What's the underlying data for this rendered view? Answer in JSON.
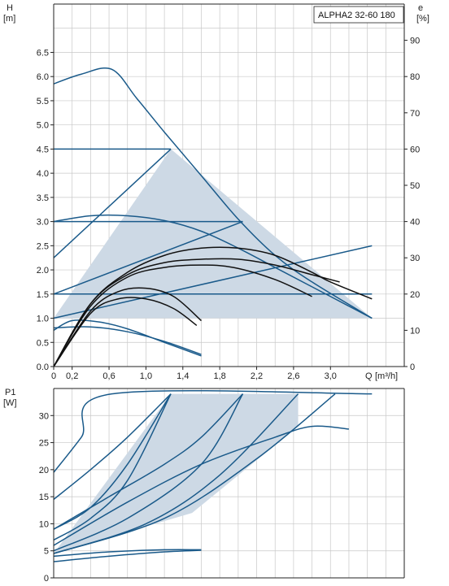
{
  "chart_data": [
    {
      "type": "line",
      "title": "ALPHA2 32-60 180",
      "ylabel": "H",
      "yunit": "[m]",
      "xlabel": "Q",
      "xunit": "[m³/h]",
      "y2label": "e",
      "y2unit": "[%]",
      "xlim": [
        0,
        3.8
      ],
      "ylim": [
        0,
        7.5
      ],
      "y2lim": [
        0,
        100
      ],
      "grid": true,
      "xticks": [
        0,
        0.2,
        0.6,
        1.0,
        1.4,
        1.8,
        2.2,
        2.6,
        3.0
      ],
      "xtick_labels": [
        "0",
        "0,2",
        "0,6",
        "1,0",
        "1,4",
        "1,8",
        "2,2",
        "2,6",
        "3,0"
      ],
      "yticks": [
        0,
        0.5,
        1.0,
        1.5,
        2.0,
        2.5,
        3.0,
        3.5,
        4.0,
        4.5,
        5.0,
        5.5,
        6.0,
        6.5
      ],
      "ytick_labels": [
        "0.0",
        "0.5",
        "1.0",
        "1.5",
        "2.0",
        "2.5",
        "3.0",
        "3.5",
        "4.0",
        "4.5",
        "5.0",
        "5.5",
        "6.0",
        "6.5"
      ],
      "y2ticks": [
        0,
        10,
        20,
        30,
        40,
        50,
        60,
        70,
        80,
        90
      ],
      "y2tick_labels": [
        "0",
        "10",
        "20",
        "30",
        "40",
        "50",
        "60",
        "70",
        "80",
        "90"
      ],
      "shaded_region": {
        "x": [
          0,
          1.27,
          3.45,
          0
        ],
        "y": [
          1.0,
          4.5,
          1.0,
          1.0
        ]
      },
      "series": [
        {
          "kind": "pump",
          "color": "#1a5a8a",
          "x": [
            0,
            0.3,
            0.63,
            0.9,
            1.2,
            1.6,
            2.0,
            2.4,
            2.8,
            3.45
          ],
          "y": [
            5.85,
            6.05,
            6.15,
            5.55,
            4.85,
            3.95,
            3.05,
            2.3,
            1.75,
            1.0
          ]
        },
        {
          "kind": "pump",
          "color": "#1a5a8a",
          "x": [
            0,
            0.4,
            0.8,
            1.2,
            1.6,
            2.0,
            2.4,
            2.8,
            3.2,
            3.45
          ],
          "y": [
            3.0,
            3.12,
            3.12,
            3.02,
            2.8,
            2.45,
            2.05,
            1.65,
            1.25,
            1.0
          ]
        },
        {
          "kind": "pump",
          "color": "#1a5a8a",
          "x": [
            0,
            0.4,
            0.8,
            1.2,
            1.6
          ],
          "y": [
            0.8,
            0.82,
            0.72,
            0.52,
            0.25
          ]
        },
        {
          "kind": "pump",
          "color": "#1a5a8a",
          "x": [
            0,
            0.2,
            0.5,
            0.8,
            1.2,
            1.6
          ],
          "y": [
            0.75,
            0.95,
            0.92,
            0.78,
            0.5,
            0.22
          ]
        },
        {
          "kind": "const_pressure",
          "color": "#1a5a8a",
          "x": [
            0,
            1.27
          ],
          "y": [
            4.5,
            4.5
          ]
        },
        {
          "kind": "const_pressure",
          "color": "#1a5a8a",
          "x": [
            0,
            2.05
          ],
          "y": [
            3.0,
            3.0
          ]
        },
        {
          "kind": "const_pressure",
          "color": "#1a5a8a",
          "x": [
            0,
            3.45
          ],
          "y": [
            1.5,
            1.5
          ]
        },
        {
          "kind": "prop_pressure",
          "color": "#1a5a8a",
          "x": [
            0,
            1.27
          ],
          "y": [
            2.25,
            4.5
          ]
        },
        {
          "kind": "prop_pressure",
          "color": "#1a5a8a",
          "x": [
            0,
            2.05
          ],
          "y": [
            1.5,
            3.0
          ]
        },
        {
          "kind": "prop_pressure",
          "color": "#1a5a8a",
          "x": [
            0,
            3.45
          ],
          "y": [
            1.0,
            2.5
          ]
        },
        {
          "kind": "efficiency",
          "color": "#111111",
          "x": [
            0,
            0.4,
            0.8,
            1.2,
            1.6,
            2.0,
            2.4,
            2.8,
            3.0,
            3.45
          ],
          "y": [
            0,
            1.3,
            1.95,
            2.3,
            2.45,
            2.45,
            2.3,
            1.95,
            1.75,
            1.4
          ]
        },
        {
          "kind": "efficiency",
          "color": "#111111",
          "x": [
            0,
            0.4,
            0.8,
            1.2,
            1.6,
            2.0,
            2.4,
            2.8,
            3.1
          ],
          "y": [
            0,
            1.3,
            1.9,
            2.15,
            2.22,
            2.22,
            2.1,
            1.9,
            1.75
          ]
        },
        {
          "kind": "efficiency",
          "color": "#111111",
          "x": [
            0,
            0.4,
            0.8,
            1.2,
            1.6,
            1.95,
            2.4,
            2.8
          ],
          "y": [
            0,
            1.25,
            1.85,
            2.05,
            2.1,
            2.05,
            1.8,
            1.45
          ]
        },
        {
          "kind": "efficiency",
          "color": "#111111",
          "x": [
            0,
            0.4,
            0.7,
            1.0,
            1.3,
            1.6
          ],
          "y": [
            0,
            1.15,
            1.55,
            1.62,
            1.45,
            0.95
          ]
        },
        {
          "kind": "efficiency",
          "color": "#111111",
          "x": [
            0,
            0.4,
            0.7,
            1.0,
            1.3,
            1.55
          ],
          "y": [
            0,
            1.1,
            1.4,
            1.4,
            1.2,
            0.85
          ]
        }
      ]
    },
    {
      "type": "line",
      "ylabel": "P1",
      "yunit": "[W]",
      "xlim": [
        0,
        3.8
      ],
      "ylim": [
        0,
        35
      ],
      "grid": true,
      "yticks": [
        0,
        5,
        10,
        15,
        20,
        25,
        30
      ],
      "ytick_labels": [
        "0",
        "5",
        "10",
        "15",
        "20",
        "25",
        "30"
      ],
      "shaded_region": {
        "x": [
          0,
          1.27,
          2.05,
          2.65,
          2.65,
          1.5,
          0
        ],
        "y": [
          4.5,
          34,
          34,
          34,
          28,
          12,
          4.5
        ]
      },
      "series": [
        {
          "kind": "power",
          "color": "#1a5a8a",
          "x": [
            0,
            0.3,
            0.63,
            3.45
          ],
          "y": [
            19.5,
            26,
            34,
            34
          ]
        },
        {
          "kind": "power",
          "color": "#1a5a8a",
          "x": [
            0,
            0.4,
            0.8,
            1.27
          ],
          "y": [
            14.5,
            20,
            26,
            34
          ]
        },
        {
          "kind": "power",
          "color": "#1a5a8a",
          "x": [
            0,
            0.4,
            0.8,
            1.27
          ],
          "y": [
            9,
            13,
            21,
            34
          ]
        },
        {
          "kind": "power",
          "color": "#1a5a8a",
          "x": [
            0,
            0.4,
            0.8,
            1.27
          ],
          "y": [
            7,
            11,
            18,
            34
          ]
        },
        {
          "kind": "power",
          "color": "#1a5a8a",
          "x": [
            0,
            0.6,
            1.2,
            1.6,
            2.05
          ],
          "y": [
            9,
            15,
            21,
            26,
            34
          ]
        },
        {
          "kind": "power",
          "color": "#1a5a8a",
          "x": [
            0,
            0.8,
            1.6,
            2.05
          ],
          "y": [
            5,
            11,
            21,
            34
          ]
        },
        {
          "kind": "power",
          "color": "#1a5a8a",
          "x": [
            0,
            1.0,
            1.8,
            2.65
          ],
          "y": [
            4.5,
            10,
            19,
            34
          ]
        },
        {
          "kind": "power",
          "color": "#1a5a8a",
          "x": [
            0,
            1.2,
            2.2,
            3.05
          ],
          "y": [
            4.5,
            11,
            22,
            34
          ]
        },
        {
          "kind": "power",
          "color": "#1a5a8a",
          "x": [
            0,
            0.8,
            1.6,
            2.4,
            2.8,
            3.2
          ],
          "y": [
            6,
            14,
            21,
            26,
            28,
            27.5
          ]
        },
        {
          "kind": "power",
          "color": "#1a5a8a",
          "x": [
            0,
            0.6,
            1.2,
            1.6
          ],
          "y": [
            4,
            4.8,
            5.2,
            5.2
          ]
        },
        {
          "kind": "power",
          "color": "#1a5a8a",
          "x": [
            0,
            0.6,
            1.2,
            1.6
          ],
          "y": [
            3,
            4,
            4.8,
            5.1
          ]
        }
      ]
    }
  ]
}
